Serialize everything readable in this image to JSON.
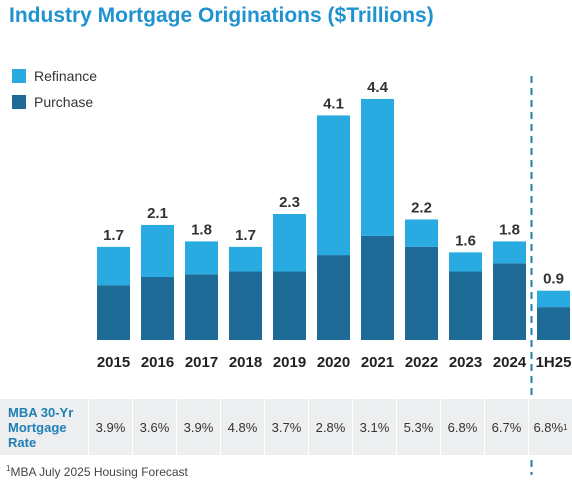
{
  "title": "Industry Mortgage Originations ($Trillions)",
  "legend": [
    {
      "label": "Refinance",
      "color": "#29abe2"
    },
    {
      "label": "Purchase",
      "color": "#1d6b96"
    }
  ],
  "chart_data": {
    "type": "bar",
    "stacked": true,
    "title": "Industry Mortgage Originations ($Trillions)",
    "categories": [
      "2015",
      "2016",
      "2017",
      "2018",
      "2019",
      "2020",
      "2021",
      "2022",
      "2023",
      "2024",
      "1H25"
    ],
    "totals": [
      "1.7",
      "2.1",
      "1.8",
      "1.7",
      "2.3",
      "4.1",
      "4.4",
      "2.2",
      "1.6",
      "1.8",
      "0.9"
    ],
    "series": [
      {
        "name": "Purchase",
        "color": "#1d6b96",
        "values": [
          1.0,
          1.15,
          1.2,
          1.25,
          1.25,
          1.55,
          1.9,
          1.7,
          1.25,
          1.4,
          0.6
        ]
      },
      {
        "name": "Refinance",
        "color": "#29abe2",
        "values": [
          0.7,
          0.95,
          0.6,
          0.45,
          1.05,
          2.55,
          2.5,
          0.5,
          0.35,
          0.4,
          0.3
        ]
      }
    ],
    "ylim": [
      0,
      4.6
    ],
    "legend_position": "top-left",
    "grid": false,
    "forecast_divider_before": "1H25"
  },
  "rates": {
    "label_lines": [
      "MBA 30-Yr",
      "Mortgage",
      "Rate"
    ],
    "values": [
      "3.9%",
      "3.6%",
      "3.9%",
      "4.8%",
      "3.7%",
      "2.8%",
      "3.1%",
      "5.3%",
      "6.8%",
      "6.7%",
      "6.8%"
    ],
    "last_footnote_mark": "1"
  },
  "footnote": {
    "mark": "1",
    "text": "MBA July 2025 Housing Forecast"
  }
}
